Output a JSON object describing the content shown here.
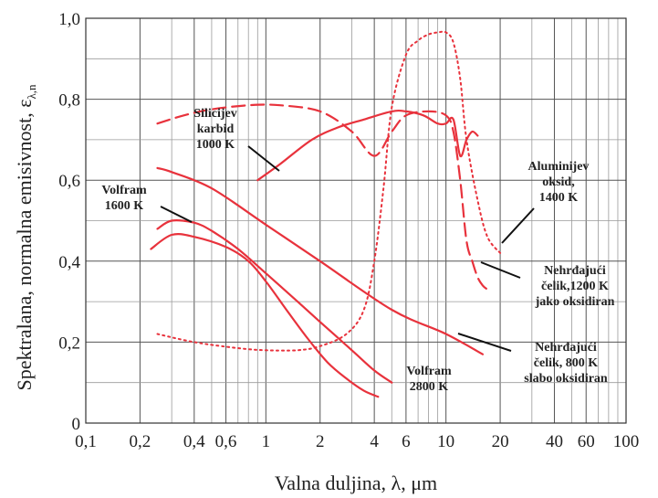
{
  "chart_data": {
    "type": "line",
    "title": "",
    "xlabel": "Valna duljina, λ, μm",
    "ylabel": "Spektralana, normalna emisivnost, ε",
    "ylabel_subscript": "λ,n",
    "xscale": "log",
    "xlim": [
      0.1,
      100
    ],
    "ylim": [
      0,
      1.0
    ],
    "grid": true,
    "x_ticks": [
      {
        "value": 0.1,
        "label": "0,1"
      },
      {
        "value": 0.2,
        "label": "0,2"
      },
      {
        "value": 0.4,
        "label": "0,4"
      },
      {
        "value": 0.6,
        "label": "0,6"
      },
      {
        "value": 1,
        "label": "1"
      },
      {
        "value": 2,
        "label": "2"
      },
      {
        "value": 4,
        "label": "4"
      },
      {
        "value": 6,
        "label": "6"
      },
      {
        "value": 10,
        "label": "10"
      },
      {
        "value": 20,
        "label": "20"
      },
      {
        "value": 40,
        "label": "40"
      },
      {
        "value": 60,
        "label": "60"
      },
      {
        "value": 100,
        "label": "100"
      }
    ],
    "y_ticks": [
      {
        "value": 0,
        "label": "0"
      },
      {
        "value": 0.2,
        "label": "0,2"
      },
      {
        "value": 0.4,
        "label": "0,4"
      },
      {
        "value": 0.6,
        "label": "0,6"
      },
      {
        "value": 0.8,
        "label": "0,8"
      },
      {
        "value": 1.0,
        "label": "1,0"
      }
    ],
    "series": [
      {
        "id": "silicijev-karbid",
        "style": "solid",
        "color": "#e8323c",
        "x": [
          0.9,
          1.2,
          1.8,
          2.5,
          3.5,
          5,
          6,
          7.5,
          9,
          10,
          11,
          12,
          13,
          14,
          15
        ],
        "y": [
          0.6,
          0.64,
          0.7,
          0.73,
          0.75,
          0.77,
          0.77,
          0.76,
          0.74,
          0.74,
          0.75,
          0.66,
          0.7,
          0.72,
          0.71
        ]
      },
      {
        "id": "aluminijev-oksid",
        "style": "dotted",
        "color": "#e8323c",
        "x": [
          0.25,
          0.4,
          0.7,
          1,
          1.5,
          2,
          2.8,
          3.5,
          4,
          4.5,
          5,
          6,
          7,
          8,
          9,
          10,
          11,
          12,
          13,
          15,
          17,
          20
        ],
        "y": [
          0.22,
          0.2,
          0.185,
          0.18,
          0.18,
          0.19,
          0.22,
          0.28,
          0.4,
          0.58,
          0.78,
          0.91,
          0.945,
          0.96,
          0.965,
          0.965,
          0.94,
          0.85,
          0.7,
          0.55,
          0.46,
          0.42
        ]
      },
      {
        "id": "nehrdajuci-celik-1200k",
        "style": "dashed",
        "color": "#e8323c",
        "x": [
          0.25,
          0.35,
          0.5,
          0.8,
          1.2,
          2,
          3,
          4,
          5,
          6,
          8,
          10,
          11,
          12,
          13,
          14,
          15,
          16,
          17
        ],
        "y": [
          0.74,
          0.76,
          0.775,
          0.785,
          0.785,
          0.77,
          0.72,
          0.66,
          0.72,
          0.76,
          0.77,
          0.76,
          0.72,
          0.6,
          0.45,
          0.4,
          0.36,
          0.34,
          0.33
        ]
      },
      {
        "id": "nehrdajuci-celik-800k",
        "style": "solid",
        "color": "#e8323c",
        "x": [
          0.25,
          0.3,
          0.5,
          1,
          2,
          5,
          10,
          16
        ],
        "y": [
          0.63,
          0.62,
          0.58,
          0.49,
          0.4,
          0.28,
          0.22,
          0.17
        ]
      },
      {
        "id": "volfram-1600k",
        "style": "solid",
        "color": "#e8323c",
        "x": [
          0.25,
          0.3,
          0.4,
          0.5,
          0.7,
          1,
          1.5,
          2,
          3,
          4,
          5
        ],
        "y": [
          0.48,
          0.5,
          0.495,
          0.475,
          0.43,
          0.37,
          0.3,
          0.25,
          0.18,
          0.13,
          0.1
        ]
      },
      {
        "id": "volfram-2800k",
        "style": "solid",
        "color": "#e8323c",
        "x": [
          0.23,
          0.3,
          0.4,
          0.6,
          0.8,
          1,
          1.3,
          1.7,
          2.2,
          2.8,
          3.5,
          4.2
        ],
        "y": [
          0.43,
          0.465,
          0.46,
          0.435,
          0.4,
          0.35,
          0.28,
          0.21,
          0.15,
          0.11,
          0.08,
          0.065
        ]
      }
    ],
    "annotations": [
      {
        "id": "silicijev-karbid",
        "lines": [
          "Silicijev",
          "karbid",
          "1000 K"
        ]
      },
      {
        "id": "aluminijev-oksid",
        "lines": [
          "Aluminijev",
          "oksid,",
          "1400 K"
        ]
      },
      {
        "id": "nehrdajuci-celik-1200k",
        "lines": [
          "Nehrđajući",
          "čelik,1200 K",
          "jako oksidiran"
        ]
      },
      {
        "id": "nehrdajuci-celik-800k",
        "lines": [
          "Nehrđajući",
          "čelik, 800 K",
          "slabo oksidiran"
        ]
      },
      {
        "id": "volfram-1600k",
        "lines": [
          "Volfram",
          "1600 K"
        ]
      },
      {
        "id": "volfram-2800k",
        "lines": [
          "Volfram",
          "2800 K"
        ]
      }
    ]
  }
}
